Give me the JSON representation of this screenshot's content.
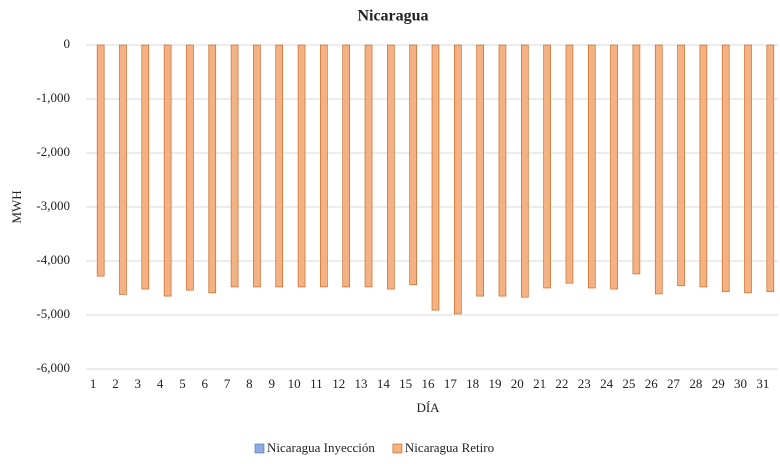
{
  "chart_data": {
    "type": "bar",
    "title": "Nicaragua",
    "x_label": "DÍA",
    "y_label": "MWH",
    "categories": [
      "1",
      "2",
      "3",
      "4",
      "5",
      "6",
      "7",
      "8",
      "9",
      "10",
      "11",
      "12",
      "13",
      "14",
      "15",
      "16",
      "17",
      "18",
      "19",
      "20",
      "21",
      "22",
      "23",
      "24",
      "25",
      "26",
      "27",
      "28",
      "29",
      "30",
      "31"
    ],
    "series": [
      {
        "name": "Nicaragua Inyección",
        "color": "#8faadc",
        "values": [
          0,
          0,
          0,
          0,
          0,
          0,
          0,
          0,
          0,
          0,
          0,
          0,
          0,
          0,
          0,
          0,
          0,
          0,
          0,
          0,
          0,
          0,
          0,
          0,
          0,
          0,
          0,
          0,
          0,
          0,
          0
        ]
      },
      {
        "name": "Nicaragua Retiro",
        "color": "#f4b183",
        "values": [
          -4280,
          -4620,
          -4520,
          -4650,
          -4540,
          -4590,
          -4480,
          -4480,
          -4480,
          -4480,
          -4480,
          -4480,
          -4480,
          -4520,
          -4440,
          -4910,
          -4980,
          -4650,
          -4650,
          -4670,
          -4500,
          -4410,
          -4500,
          -4520,
          -4240,
          -4610,
          -4460,
          -4480,
          -4570,
          -4590,
          -4570
        ]
      }
    ],
    "ylim": [
      -6000,
      0
    ],
    "yticks": [
      0,
      {
        "value": -1000,
        "label": "-1,000"
      },
      {
        "value": -2000,
        "label": "-2,000"
      },
      {
        "value": -3000,
        "label": "-3,000"
      },
      {
        "value": -4000,
        "label": "-4,000"
      },
      {
        "value": -5000,
        "label": "-5,000"
      },
      {
        "value": -6000,
        "label": "-6,000"
      }
    ],
    "grid": true,
    "legend": "bottom"
  }
}
